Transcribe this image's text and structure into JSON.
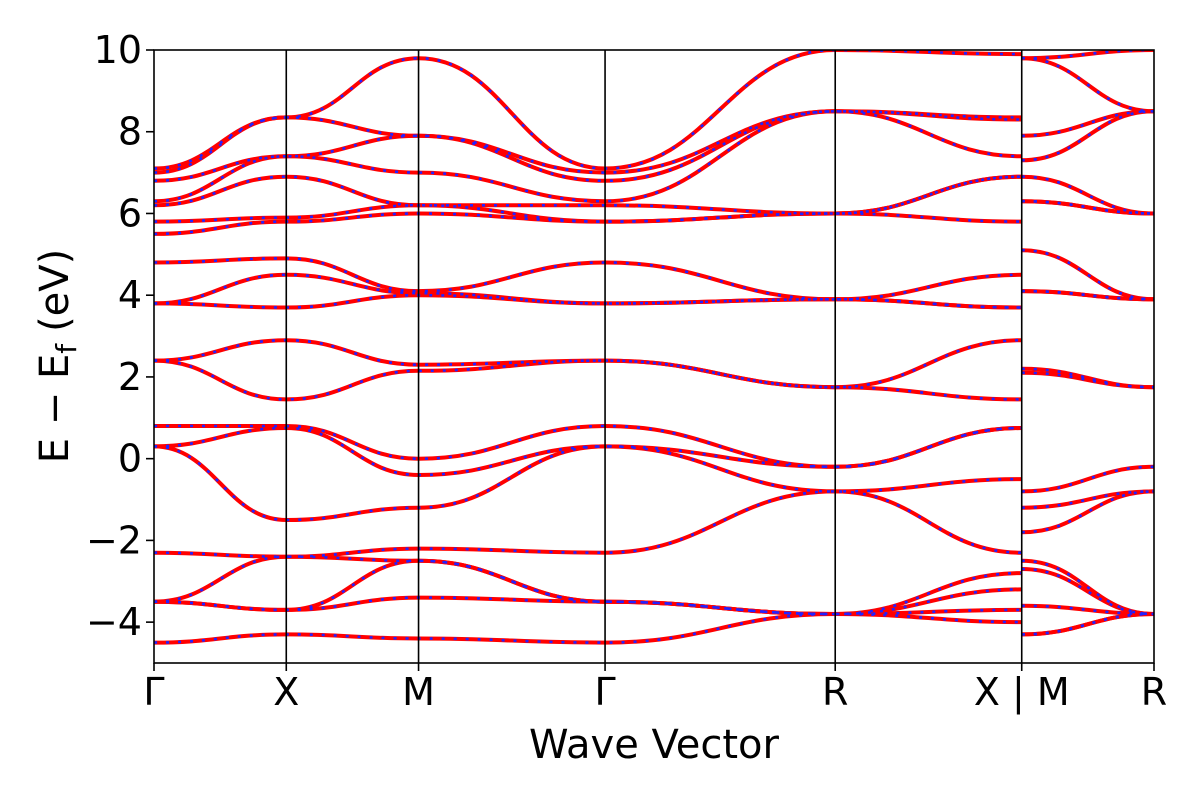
{
  "chart_data": {
    "type": "line",
    "title": "",
    "xlabel": "Wave Vector",
    "ylabel": "E − E",
    "ylabel_subscript": "f",
    "ylabel_unit": "(eV)",
    "ylim": [
      -5,
      10
    ],
    "yticks": [
      -4,
      -2,
      0,
      2,
      4,
      6,
      8,
      10
    ],
    "ytick_labels": [
      "−4",
      "−2",
      "0",
      "2",
      "4",
      "6",
      "8",
      "10"
    ],
    "xlim": [
      0,
      7.56
    ],
    "kpoints": [
      {
        "label": "Γ",
        "x": 0.0
      },
      {
        "label": "X",
        "x": 1.0
      },
      {
        "label": "M",
        "x": 2.0
      },
      {
        "label": "Γ",
        "x": 3.41
      },
      {
        "label": "R",
        "x": 5.15
      },
      {
        "label": "X | M",
        "x": 6.56
      },
      {
        "label": "R",
        "x": 7.56
      }
    ],
    "grid": false,
    "legend": "none",
    "series": [
      {
        "style": "red solid",
        "bands": [
          [
            0.8,
            0.8,
            0.0,
            0.8,
            -0.2,
            0.75,
            -0.8,
            0.0,
            -0.2
          ],
          [
            0.3,
            0.75,
            -0.4,
            0.3,
            -0.2,
            0.75,
            -1.2,
            0.0,
            -0.8
          ],
          [
            0.3,
            -1.5,
            -1.2,
            0.3,
            -0.8,
            -0.5,
            -1.8,
            -1.2,
            -0.8
          ],
          [
            -2.3,
            -2.4,
            -2.2,
            -2.3,
            -0.8,
            -2.3,
            -2.5,
            -1.8,
            -3.8
          ],
          [
            -3.5,
            -2.4,
            -2.5,
            -3.5,
            -3.8,
            -2.8,
            -2.7,
            -2.5,
            -3.8
          ],
          [
            -3.5,
            -3.7,
            -2.5,
            -3.5,
            -3.8,
            -3.2,
            -3.6,
            -2.7,
            -3.8
          ],
          [
            -3.5,
            -3.7,
            -3.4,
            -3.5,
            -3.8,
            -3.7,
            -4.3,
            -3.6,
            -3.8
          ],
          [
            -4.5,
            -4.3,
            -4.4,
            -4.5,
            -3.8,
            -4.0,
            -4.3,
            -4.3,
            -3.8
          ],
          [
            2.4,
            1.45,
            2.15,
            2.4,
            1.75,
            1.45,
            2.1,
            2.1,
            1.75
          ],
          [
            2.4,
            2.9,
            2.3,
            2.4,
            1.75,
            2.9,
            2.2,
            2.3,
            1.75
          ],
          [
            3.8,
            3.7,
            4.0,
            3.8,
            3.9,
            3.7,
            4.1,
            4.0,
            3.9
          ],
          [
            3.8,
            4.5,
            4.05,
            3.8,
            3.9,
            4.5,
            4.1,
            4.1,
            3.9
          ],
          [
            4.8,
            4.9,
            4.1,
            4.8,
            3.9,
            3.7,
            5.1,
            5.1,
            3.9
          ],
          [
            5.5,
            5.8,
            6.0,
            5.8,
            6.0,
            5.8,
            6.3,
            5.1,
            6.0
          ],
          [
            5.8,
            5.9,
            6.2,
            5.8,
            6.0,
            6.9,
            6.3,
            6.3,
            6.0
          ],
          [
            6.2,
            6.9,
            6.2,
            6.2,
            6.0,
            6.9,
            6.9,
            6.3,
            6.0
          ],
          [
            6.3,
            7.4,
            7.0,
            6.3,
            8.5,
            7.4,
            7.3,
            7.9,
            8.5
          ],
          [
            6.8,
            7.4,
            7.9,
            6.8,
            8.5,
            8.3,
            7.9,
            7.9,
            8.5
          ],
          [
            7.0,
            8.35,
            7.9,
            7.0,
            8.5,
            8.35,
            9.8,
            7.9,
            8.5
          ],
          [
            7.1,
            8.35,
            9.8,
            7.1,
            10.0,
            9.9,
            9.8,
            9.8,
            10.0
          ]
        ]
      },
      {
        "style": "blue dotted",
        "bands": "same as red"
      }
    ]
  }
}
